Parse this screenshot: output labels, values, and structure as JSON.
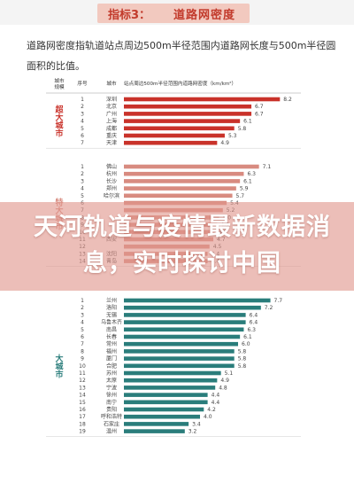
{
  "header": {
    "indicator_label": "指标3：",
    "indicator_name": "道路网密度"
  },
  "description": "道路网密度指轨道站点周边500m半径范围内道路网长度与500m半径圆面积的比值。",
  "overlay_headline": "天河轨道与疫情最新数据消息，实时探讨中国",
  "chart_data": {
    "type": "bar",
    "orientation": "horizontal",
    "columns": {
      "scale": "城市规模",
      "rank": "序号",
      "city": "城市",
      "value": "站点周边500m半径范围内道路网密度（km/km²）"
    },
    "groups": [
      {
        "name": "超大城市",
        "color": "#c9322a",
        "rows": [
          {
            "rank": "1",
            "city": "深圳",
            "value": 8.2
          },
          {
            "rank": "2",
            "city": "北京",
            "value": 6.7
          },
          {
            "rank": "3",
            "city": "广州",
            "value": 6.7
          },
          {
            "rank": "4",
            "city": "上海",
            "value": 6.1
          },
          {
            "rank": "5",
            "city": "成都",
            "value": 5.8
          },
          {
            "rank": "6",
            "city": "重庆",
            "value": 5.3
          },
          {
            "rank": "7",
            "city": "天津",
            "value": 4.9
          }
        ]
      },
      {
        "name": "特大城市",
        "color": "#d88b80",
        "rows": [
          {
            "rank": "1",
            "city": "佛山",
            "value": 7.1
          },
          {
            "rank": "2",
            "city": "杭州",
            "value": 6.3
          },
          {
            "rank": "3",
            "city": "长沙",
            "value": 6.1
          },
          {
            "rank": "4",
            "city": "郑州",
            "value": 5.9
          },
          {
            "rank": "5",
            "city": "哈尔滨",
            "value": 5.7
          },
          {
            "rank": "6",
            "city": "",
            "value": 5.4
          },
          {
            "rank": "7",
            "city": "",
            "value": 5.2
          },
          {
            "rank": "8",
            "city": "",
            "value": 5.0
          },
          {
            "rank": "9",
            "city": "",
            "value": 4.9
          },
          {
            "rank": "10",
            "city": "",
            "value": 4.8
          },
          {
            "rank": "11",
            "city": "西安",
            "value": 4.7
          },
          {
            "rank": "12",
            "city": "",
            "value": 4.5
          },
          {
            "rank": "13",
            "city": "沈阳",
            "value": 4.4
          },
          {
            "rank": "14",
            "city": "青岛",
            "value": 4.4
          }
        ]
      },
      {
        "name": "大城市",
        "color": "#2a7d7b",
        "rows": [
          {
            "rank": "1",
            "city": "兰州",
            "value": 7.7
          },
          {
            "rank": "2",
            "city": "洛阳",
            "value": 7.2
          },
          {
            "rank": "3",
            "city": "无锡",
            "value": 6.4
          },
          {
            "rank": "4",
            "city": "乌鲁木齐",
            "value": 6.4
          },
          {
            "rank": "5",
            "city": "南昌",
            "value": 6.3
          },
          {
            "rank": "6",
            "city": "长春",
            "value": 6.1
          },
          {
            "rank": "7",
            "city": "常州",
            "value": 6.0
          },
          {
            "rank": "8",
            "city": "福州",
            "value": 5.8
          },
          {
            "rank": "9",
            "city": "厦门",
            "value": 5.8
          },
          {
            "rank": "10",
            "city": "合肥",
            "value": 5.8
          },
          {
            "rank": "11",
            "city": "苏州",
            "value": 5.1
          },
          {
            "rank": "12",
            "city": "太原",
            "value": 4.9
          },
          {
            "rank": "13",
            "city": "宁波",
            "value": 4.8
          },
          {
            "rank": "14",
            "city": "徐州",
            "value": 4.4
          },
          {
            "rank": "15",
            "city": "南宁",
            "value": 4.4
          },
          {
            "rank": "16",
            "city": "贵阳",
            "value": 4.2
          },
          {
            "rank": "17",
            "city": "呼和浩特",
            "value": 4.0
          },
          {
            "rank": "18",
            "city": "石家庄",
            "value": 3.4
          },
          {
            "rank": "19",
            "city": "温州",
            "value": 3.2
          }
        ]
      }
    ]
  }
}
